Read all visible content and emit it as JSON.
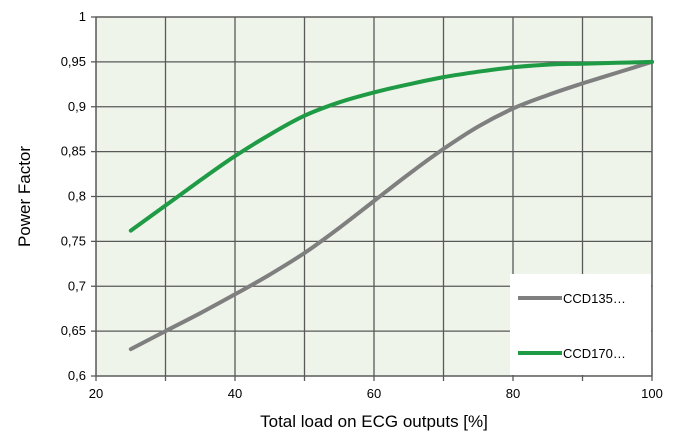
{
  "chart_data": {
    "type": "line",
    "title": "",
    "xlabel": "Total load on ECG outputs [%]",
    "ylabel": "Power Factor",
    "xlim": [
      20,
      100
    ],
    "ylim": [
      0.6,
      1.0
    ],
    "x_ticks": [
      20,
      40,
      60,
      80,
      100
    ],
    "y_ticks": [
      0.6,
      0.65,
      0.7,
      0.75,
      0.8,
      0.85,
      0.9,
      0.95,
      1.0
    ],
    "x_tick_labels": [
      "20",
      "40",
      "60",
      "80",
      "100"
    ],
    "y_tick_labels": [
      "0,6",
      "0,65",
      "0,7",
      "0,75",
      "0,8",
      "0,85",
      "0,9",
      "0,95",
      "1"
    ],
    "grid": true,
    "legend_position": "bottom-right",
    "plot_background": "#eef4ea",
    "grid_color": "#595959",
    "series": [
      {
        "name": "CCD135…",
        "color": "#7f7f7f",
        "x": [
          25,
          30,
          35,
          40,
          45,
          50,
          55,
          60,
          65,
          70,
          75,
          80,
          85,
          90,
          95,
          100
        ],
        "y": [
          0.63,
          0.65,
          0.67,
          0.691,
          0.713,
          0.737,
          0.765,
          0.795,
          0.825,
          0.853,
          0.878,
          0.898,
          0.913,
          0.926,
          0.938,
          0.95
        ]
      },
      {
        "name": "CCD170…",
        "color": "#1f9a45",
        "x": [
          25,
          30,
          35,
          40,
          45,
          50,
          55,
          60,
          65,
          70,
          75,
          80,
          85,
          90,
          95,
          100
        ],
        "y": [
          0.762,
          0.79,
          0.818,
          0.845,
          0.869,
          0.89,
          0.905,
          0.916,
          0.925,
          0.933,
          0.939,
          0.944,
          0.947,
          0.948,
          0.949,
          0.95
        ]
      }
    ]
  }
}
